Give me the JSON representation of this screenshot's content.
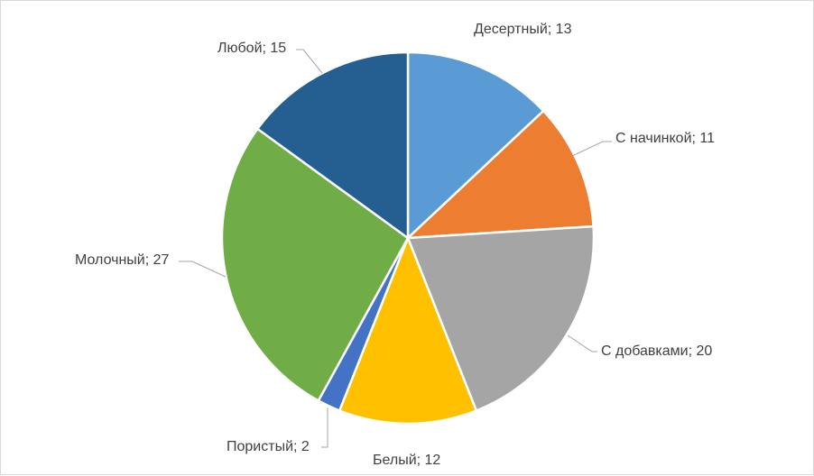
{
  "chart_data": {
    "type": "pie",
    "title": "",
    "legend": false,
    "categories": [
      "Десертный",
      "С начинкой",
      "С добавками",
      "Белый",
      "Пористый",
      "Молочный",
      "Любой"
    ],
    "values": [
      13,
      11,
      20,
      12,
      2,
      27,
      15
    ],
    "labels": [
      "Десертный; 13",
      "С начинкой; 11",
      "С добавками; 20",
      "Белый; 12",
      "Пористый; 2",
      "Молочный; 27",
      "Любой; 15"
    ],
    "colors": [
      "#5B9BD5",
      "#ED7D31",
      "#A5A5A5",
      "#FFC000",
      "#4472C4",
      "#70AD47",
      "#255E91"
    ]
  }
}
